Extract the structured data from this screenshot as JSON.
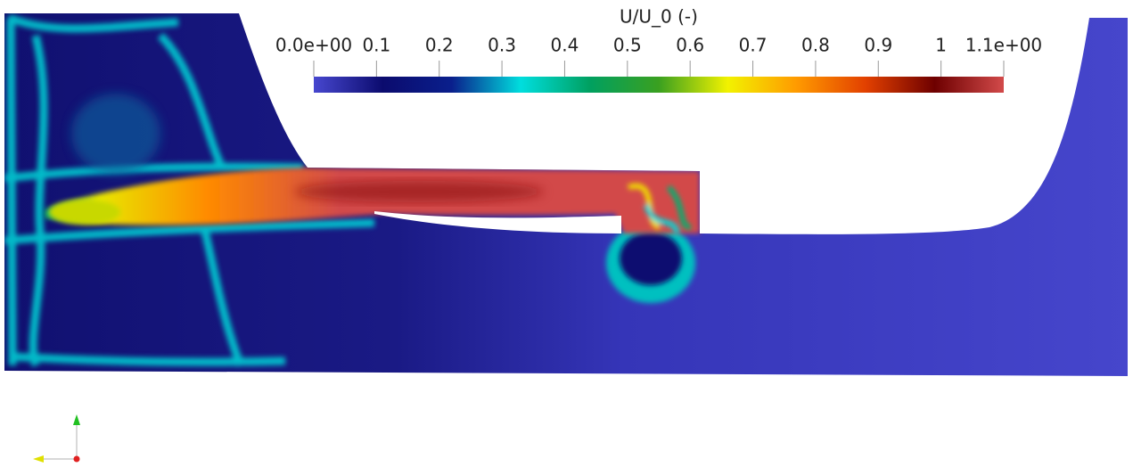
{
  "colorbar": {
    "title": "U/U_0 (-)",
    "range": [
      0,
      1.1
    ],
    "ticks": [
      {
        "value": 0,
        "label": "0.0e+00"
      },
      0.1,
      0.2,
      0.3,
      0.4,
      0.5,
      0.6,
      0.7,
      0.8,
      0.9,
      1,
      {
        "value": 1.1,
        "label": "1.1e+00"
      }
    ],
    "colormap": [
      "#4747cf",
      "#0b0b6e",
      "#0a1f8c",
      "#00dede",
      "#00a060",
      "#3aa020",
      "#f2f200",
      "#ff9a00",
      "#e24000",
      "#6e0000",
      "#d24a4a"
    ]
  }
}
